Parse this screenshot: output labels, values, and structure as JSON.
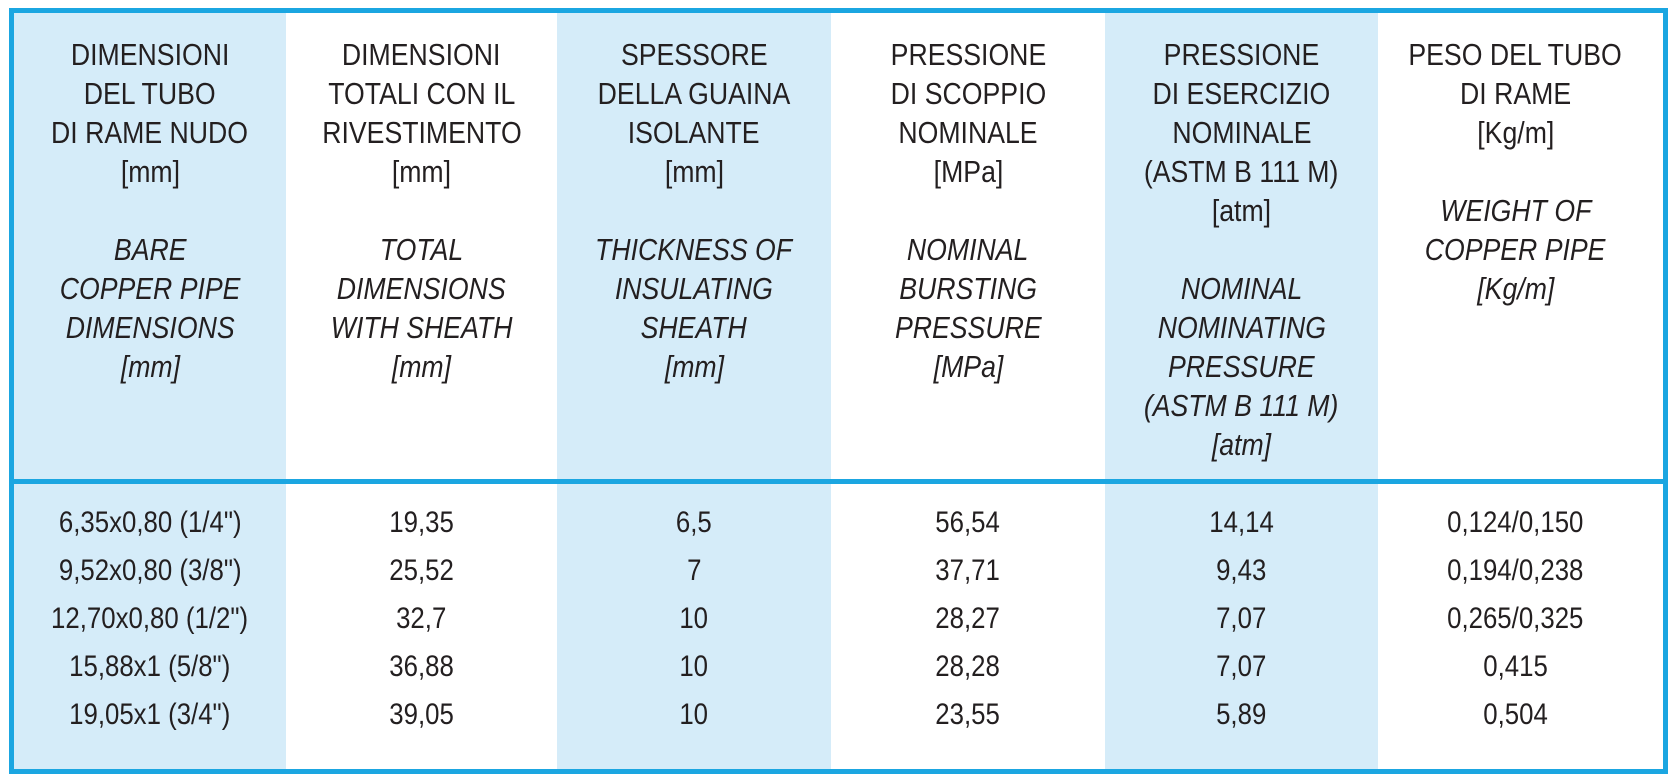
{
  "columns": [
    {
      "it_lines": [
        "DIMENSIONI",
        "DEL TUBO",
        "DI RAME NUDO",
        "[mm]"
      ],
      "en_lines": [
        "BARE",
        "COPPER PIPE",
        "DIMENSIONS",
        "[mm]"
      ]
    },
    {
      "it_lines": [
        "DIMENSIONI",
        "TOTALI CON IL",
        "RIVESTIMENTO",
        "[mm]"
      ],
      "en_lines": [
        "TOTAL",
        "DIMENSIONS",
        "WITH SHEATH",
        "[mm]"
      ]
    },
    {
      "it_lines": [
        "SPESSORE",
        "DELLA GUAINA",
        "ISOLANTE",
        "[mm]"
      ],
      "en_lines": [
        "THICKNESS OF",
        "INSULATING",
        "SHEATH",
        "[mm]"
      ]
    },
    {
      "it_lines": [
        "PRESSIONE",
        "DI SCOPPIO",
        "NOMINALE",
        "[MPa]"
      ],
      "en_lines": [
        "NOMINAL",
        "BURSTING",
        "PRESSURE",
        "[MPa]"
      ]
    },
    {
      "it_lines": [
        "PRESSIONE",
        "DI ESERCIZIO",
        "NOMINALE",
        "(ASTM B 111 M)",
        "[atm]"
      ],
      "en_lines": [
        "NOMINAL",
        "NOMINATING",
        "PRESSURE",
        "(ASTM B 111 M)",
        "[atm]"
      ]
    },
    {
      "it_lines": [
        "PESO DEL TUBO",
        "DI RAME",
        "[Kg/m]"
      ],
      "en_lines": [
        "WEIGHT OF",
        "COPPER PIPE",
        "[Kg/m]"
      ]
    }
  ],
  "rows": [
    [
      "6,35x0,80 (1/4\")",
      "19,35",
      "6,5",
      "56,54",
      "14,14",
      "0,124/0,150"
    ],
    [
      "9,52x0,80 (3/8\")",
      "25,52",
      "7",
      "37,71",
      "9,43",
      "0,194/0,238"
    ],
    [
      "12,70x0,80 (1/2\")",
      "32,7",
      "10",
      "28,27",
      "7,07",
      "0,265/0,325"
    ],
    [
      "15,88x1 (5/8\")",
      "36,88",
      "10",
      "28,28",
      "7,07",
      "0,415"
    ],
    [
      "19,05x1 (3/4\")",
      "39,05",
      "10",
      "23,55",
      "5,89",
      "0,504"
    ]
  ],
  "colors": {
    "border": "#1ba6e1",
    "shaded_column": "#d5ecf9",
    "text": "#231f20"
  }
}
